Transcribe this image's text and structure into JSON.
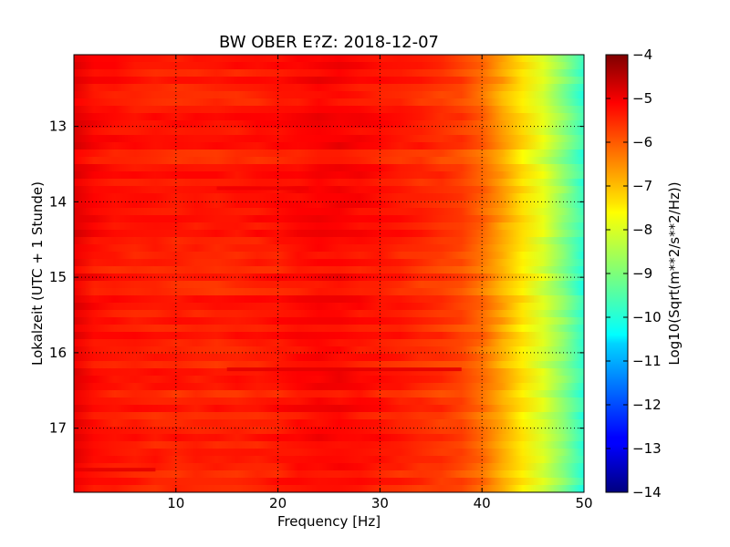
{
  "chart_data": {
    "type": "heatmap",
    "title": "BW OBER E?Z: 2018-12-07",
    "xlabel": "Frequency [Hz]",
    "ylabel": "Lokalzeit (UTC + 1 Stunde)",
    "xlim": [
      0,
      50
    ],
    "ylim_top": 12.05,
    "ylim_bottom": 17.85,
    "x_ticks": [
      {
        "value": 10,
        "label": "10"
      },
      {
        "value": 20,
        "label": "20"
      },
      {
        "value": 30,
        "label": "30"
      },
      {
        "value": 40,
        "label": "40"
      },
      {
        "value": 50,
        "label": "50"
      }
    ],
    "y_ticks": [
      {
        "value": 13,
        "label": "13"
      },
      {
        "value": 14,
        "label": "14"
      },
      {
        "value": 15,
        "label": "15"
      },
      {
        "value": 16,
        "label": "16"
      },
      {
        "value": 17,
        "label": "17"
      }
    ],
    "grid": true,
    "grid_style": "dotted",
    "colormap": "jet",
    "colorbar": {
      "label": "Log10(Sqrt(m**2/s**2/Hz))",
      "min": -14,
      "max": -4,
      "ticks": [
        {
          "value": -4,
          "label": "−4"
        },
        {
          "value": -5,
          "label": "−5"
        },
        {
          "value": -6,
          "label": "−6"
        },
        {
          "value": -7,
          "label": "−7"
        },
        {
          "value": -8,
          "label": "−8"
        },
        {
          "value": -9,
          "label": "−9"
        },
        {
          "value": -10,
          "label": "−10"
        },
        {
          "value": -11,
          "label": "−11"
        },
        {
          "value": -12,
          "label": "−12"
        },
        {
          "value": -13,
          "label": "−13"
        },
        {
          "value": -14,
          "label": "−14"
        }
      ]
    },
    "frequency_profile": [
      {
        "freq": 0,
        "value": -5.0
      },
      {
        "freq": 2,
        "value": -5.35
      },
      {
        "freq": 5,
        "value": -5.5
      },
      {
        "freq": 10,
        "value": -5.55
      },
      {
        "freq": 15,
        "value": -5.55
      },
      {
        "freq": 20,
        "value": -5.45
      },
      {
        "freq": 25,
        "value": -5.25
      },
      {
        "freq": 30,
        "value": -5.45
      },
      {
        "freq": 35,
        "value": -5.7
      },
      {
        "freq": 38,
        "value": -5.9
      },
      {
        "freq": 40,
        "value": -6.3
      },
      {
        "freq": 42,
        "value": -6.9
      },
      {
        "freq": 44,
        "value": -7.5
      },
      {
        "freq": 46,
        "value": -8.1
      },
      {
        "freq": 48,
        "value": -8.9
      },
      {
        "freq": 50,
        "value": -9.8
      }
    ],
    "features": [
      {
        "label": "dark band",
        "time": 16.22,
        "freq_start": 15,
        "freq_end": 38,
        "value": -5.0
      },
      {
        "label": "dark band",
        "time": 13.82,
        "freq_start": 14,
        "freq_end": 23,
        "value": -5.1
      },
      {
        "label": "dark band",
        "time": 17.55,
        "freq_start": 0,
        "freq_end": 8,
        "value": -5.0
      }
    ]
  }
}
